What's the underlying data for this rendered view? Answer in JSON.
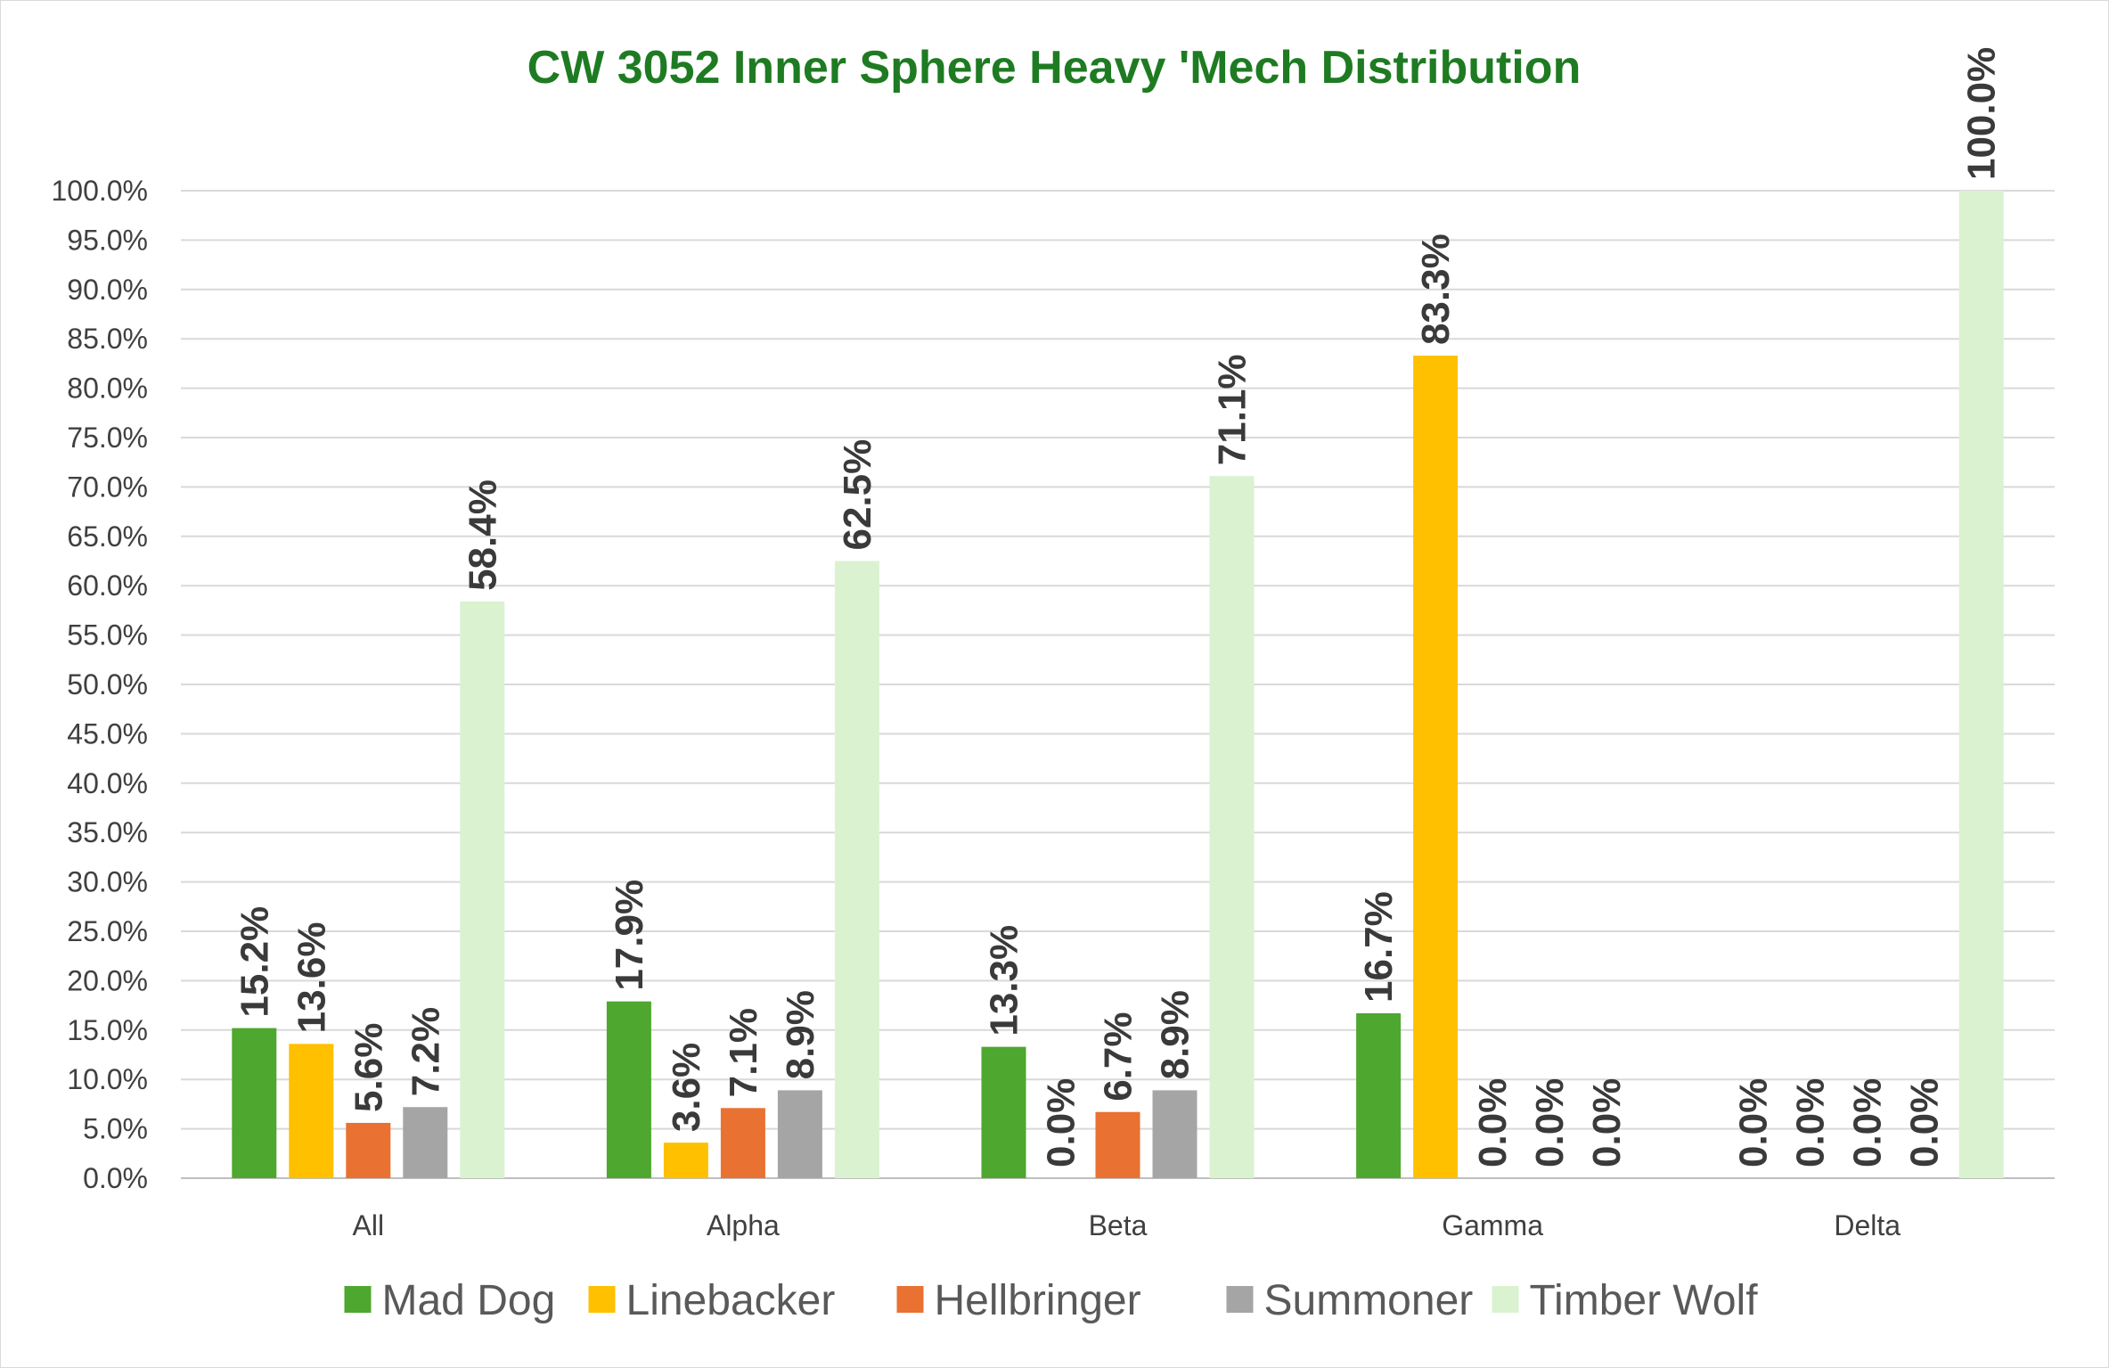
{
  "chart_data": {
    "type": "bar",
    "title": "CW 3052 Inner Sphere Heavy 'Mech Distribution",
    "xlabel": "",
    "ylabel": "",
    "categories": [
      "All",
      "Alpha",
      "Beta",
      "Gamma",
      "Delta"
    ],
    "ylim": [
      0,
      100
    ],
    "ytick_step": 5,
    "ytick_labels": [
      "0.0%",
      "5.0%",
      "10.0%",
      "15.0%",
      "20.0%",
      "25.0%",
      "30.0%",
      "35.0%",
      "40.0%",
      "45.0%",
      "50.0%",
      "55.0%",
      "60.0%",
      "65.0%",
      "70.0%",
      "75.0%",
      "80.0%",
      "85.0%",
      "90.0%",
      "95.0%",
      "100.0%"
    ],
    "grid": true,
    "legend_position": "bottom",
    "series": [
      {
        "name": "Mad Dog",
        "color": "#4ea72e",
        "values": [
          15.2,
          17.9,
          13.3,
          16.7,
          0.0
        ],
        "labels": [
          "15.2%",
          "17.9%",
          "13.3%",
          "16.7%",
          "0.0%"
        ]
      },
      {
        "name": "Linebacker",
        "color": "#ffc000",
        "values": [
          13.6,
          3.6,
          0.0,
          83.3,
          0.0
        ],
        "labels": [
          "13.6%",
          "3.6%",
          "0.0%",
          "83.3%",
          "0.0%"
        ]
      },
      {
        "name": "Hellbringer",
        "color": "#e97132",
        "values": [
          5.6,
          7.1,
          6.7,
          0.0,
          0.0
        ],
        "labels": [
          "5.6%",
          "7.1%",
          "6.7%",
          "0.0%",
          "0.0%"
        ]
      },
      {
        "name": "Summoner",
        "color": "#a5a5a5",
        "values": [
          7.2,
          8.9,
          8.9,
          0.0,
          0.0
        ],
        "labels": [
          "7.2%",
          "8.9%",
          "8.9%",
          "0.0%",
          "0.0%"
        ]
      },
      {
        "name": "Timber Wolf",
        "color": "#daf2d0",
        "values": [
          58.4,
          62.5,
          71.1,
          0.0,
          100.0
        ],
        "labels": [
          "58.4%",
          "62.5%",
          "71.1%",
          "0.0%",
          "100.0%"
        ]
      }
    ]
  }
}
